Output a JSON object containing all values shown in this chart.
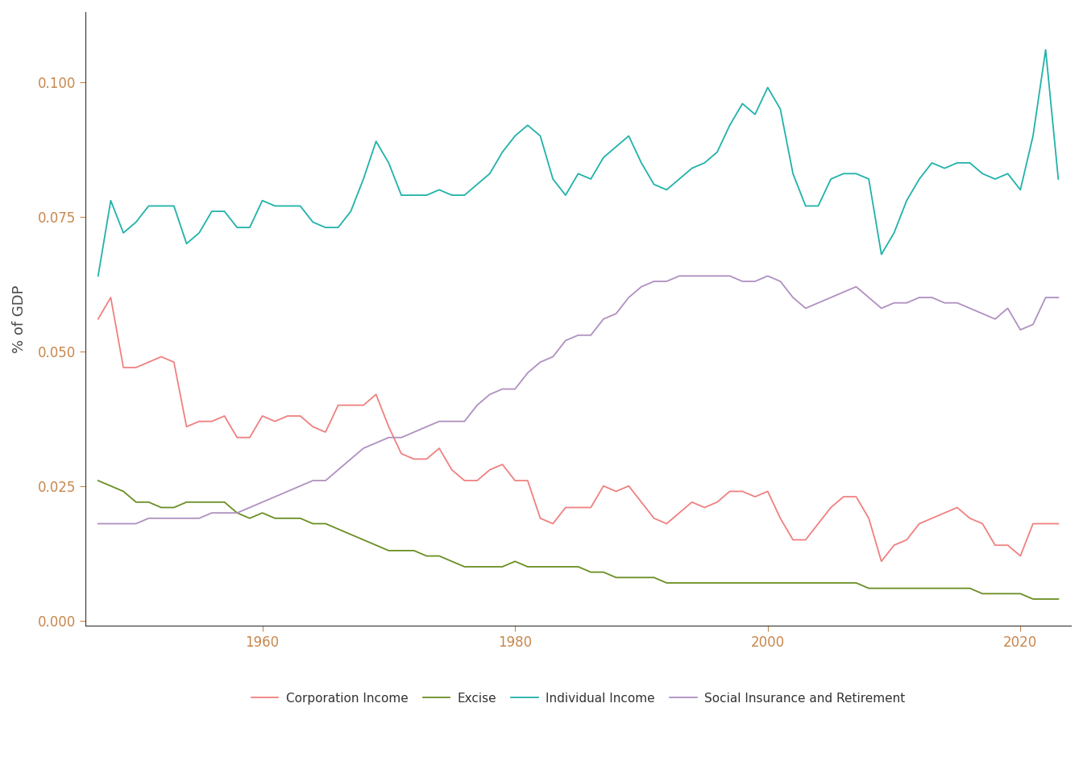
{
  "ylabel": "% of GDP",
  "background_color": "#ffffff",
  "legend_labels": [
    "Corporation Income",
    "Excise",
    "Individual Income",
    "Social Insurance and Retirement"
  ],
  "colors": {
    "Corporation Income": "#F08080",
    "Excise": "#6B8E23",
    "Individual Income": "#20B2AA",
    "Social Insurance and Retirement": "#B090C0"
  },
  "years": [
    1947,
    1948,
    1949,
    1950,
    1951,
    1952,
    1953,
    1954,
    1955,
    1956,
    1957,
    1958,
    1959,
    1960,
    1961,
    1962,
    1963,
    1964,
    1965,
    1966,
    1967,
    1968,
    1969,
    1970,
    1971,
    1972,
    1973,
    1974,
    1975,
    1976,
    1977,
    1978,
    1979,
    1980,
    1981,
    1982,
    1983,
    1984,
    1985,
    1986,
    1987,
    1988,
    1989,
    1990,
    1991,
    1992,
    1993,
    1994,
    1995,
    1996,
    1997,
    1998,
    1999,
    2000,
    2001,
    2002,
    2003,
    2004,
    2005,
    2006,
    2007,
    2008,
    2009,
    2010,
    2011,
    2012,
    2013,
    2014,
    2015,
    2016,
    2017,
    2018,
    2019,
    2020,
    2021,
    2022,
    2023
  ],
  "corporation_income": [
    0.056,
    0.06,
    0.047,
    0.047,
    0.048,
    0.049,
    0.048,
    0.036,
    0.037,
    0.037,
    0.038,
    0.034,
    0.034,
    0.038,
    0.037,
    0.038,
    0.038,
    0.036,
    0.035,
    0.04,
    0.04,
    0.04,
    0.042,
    0.036,
    0.031,
    0.03,
    0.03,
    0.032,
    0.028,
    0.026,
    0.026,
    0.028,
    0.029,
    0.026,
    0.026,
    0.019,
    0.018,
    0.021,
    0.021,
    0.021,
    0.025,
    0.024,
    0.025,
    0.022,
    0.019,
    0.018,
    0.02,
    0.022,
    0.021,
    0.022,
    0.024,
    0.024,
    0.023,
    0.024,
    0.019,
    0.015,
    0.015,
    0.018,
    0.021,
    0.023,
    0.023,
    0.019,
    0.011,
    0.014,
    0.015,
    0.018,
    0.019,
    0.02,
    0.021,
    0.019,
    0.018,
    0.014,
    0.014,
    0.012,
    0.018,
    0.018,
    0.018
  ],
  "excise": [
    0.026,
    0.025,
    0.024,
    0.022,
    0.022,
    0.021,
    0.021,
    0.022,
    0.022,
    0.022,
    0.022,
    0.02,
    0.019,
    0.02,
    0.019,
    0.019,
    0.019,
    0.018,
    0.018,
    0.017,
    0.016,
    0.015,
    0.014,
    0.013,
    0.013,
    0.013,
    0.012,
    0.012,
    0.011,
    0.01,
    0.01,
    0.01,
    0.01,
    0.011,
    0.01,
    0.01,
    0.01,
    0.01,
    0.01,
    0.009,
    0.009,
    0.008,
    0.008,
    0.008,
    0.008,
    0.007,
    0.007,
    0.007,
    0.007,
    0.007,
    0.007,
    0.007,
    0.007,
    0.007,
    0.007,
    0.007,
    0.007,
    0.007,
    0.007,
    0.007,
    0.007,
    0.006,
    0.006,
    0.006,
    0.006,
    0.006,
    0.006,
    0.006,
    0.006,
    0.006,
    0.005,
    0.005,
    0.005,
    0.005,
    0.004,
    0.004,
    0.004
  ],
  "individual_income": [
    0.064,
    0.078,
    0.072,
    0.074,
    0.077,
    0.077,
    0.077,
    0.07,
    0.072,
    0.076,
    0.076,
    0.073,
    0.073,
    0.078,
    0.077,
    0.077,
    0.077,
    0.074,
    0.073,
    0.073,
    0.076,
    0.082,
    0.089,
    0.085,
    0.079,
    0.079,
    0.079,
    0.08,
    0.079,
    0.079,
    0.081,
    0.083,
    0.087,
    0.09,
    0.092,
    0.09,
    0.082,
    0.079,
    0.083,
    0.082,
    0.086,
    0.088,
    0.09,
    0.085,
    0.081,
    0.08,
    0.082,
    0.084,
    0.085,
    0.087,
    0.092,
    0.096,
    0.094,
    0.099,
    0.095,
    0.083,
    0.077,
    0.077,
    0.082,
    0.083,
    0.083,
    0.082,
    0.068,
    0.072,
    0.078,
    0.082,
    0.085,
    0.084,
    0.085,
    0.085,
    0.083,
    0.082,
    0.083,
    0.08,
    0.09,
    0.106,
    0.082
  ],
  "social_insurance": [
    0.018,
    0.018,
    0.018,
    0.018,
    0.019,
    0.019,
    0.019,
    0.019,
    0.019,
    0.02,
    0.02,
    0.02,
    0.021,
    0.022,
    0.023,
    0.024,
    0.025,
    0.026,
    0.026,
    0.028,
    0.03,
    0.032,
    0.033,
    0.034,
    0.034,
    0.035,
    0.036,
    0.037,
    0.037,
    0.037,
    0.04,
    0.042,
    0.043,
    0.043,
    0.046,
    0.048,
    0.049,
    0.052,
    0.053,
    0.053,
    0.056,
    0.057,
    0.06,
    0.062,
    0.063,
    0.063,
    0.064,
    0.064,
    0.064,
    0.064,
    0.064,
    0.063,
    0.063,
    0.064,
    0.063,
    0.06,
    0.058,
    0.059,
    0.06,
    0.061,
    0.062,
    0.06,
    0.058,
    0.059,
    0.059,
    0.06,
    0.06,
    0.059,
    0.059,
    0.058,
    0.057,
    0.056,
    0.058,
    0.054,
    0.055,
    0.06,
    0.06
  ],
  "tick_color": "#C8864B",
  "label_color": "#4a4a4a",
  "spine_color": "#333333",
  "ylim": [
    -0.001,
    0.113
  ],
  "xlim": [
    1946,
    2024
  ],
  "yticks": [
    0.0,
    0.025,
    0.05,
    0.075,
    0.1
  ],
  "xtick_interval": 20,
  "linewidth": 1.3,
  "legend_fontsize": 11,
  "ylabel_fontsize": 13,
  "tick_labelsize": 12
}
